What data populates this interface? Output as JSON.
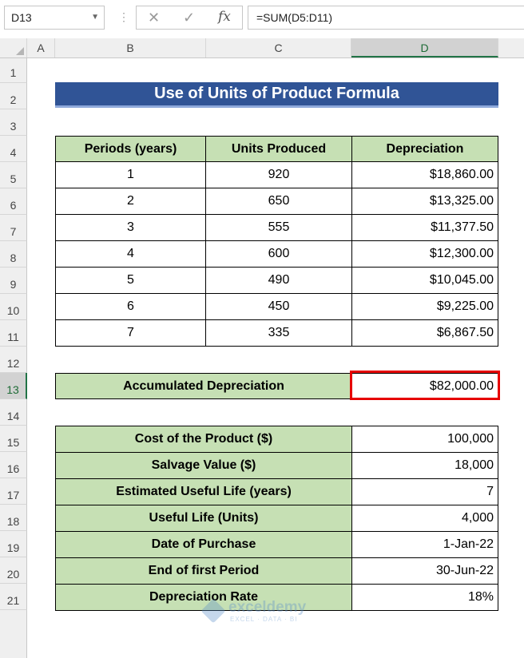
{
  "formula_bar": {
    "name_box": "D13",
    "formula": "=SUM(D5:D11)",
    "icons": [
      "more-icon",
      "cancel-icon",
      "enter-icon",
      "function-icon"
    ]
  },
  "columns": [
    "A",
    "B",
    "C",
    "D"
  ],
  "selected_column": "D",
  "rows": [
    "1",
    "2",
    "3",
    "4",
    "5",
    "6",
    "7",
    "8",
    "9",
    "10",
    "11",
    "12",
    "13",
    "14",
    "15",
    "16",
    "17",
    "18",
    "19",
    "20",
    "21"
  ],
  "selected_row": "13",
  "title": "Use of Units of Product Formula",
  "table1": {
    "headers": [
      "Periods (years)",
      "Units Produced",
      "Depreciation"
    ],
    "rows": [
      [
        "1",
        "920",
        "$18,860.00"
      ],
      [
        "2",
        "650",
        "$13,325.00"
      ],
      [
        "3",
        "555",
        "$11,377.50"
      ],
      [
        "4",
        "600",
        "$12,300.00"
      ],
      [
        "5",
        "490",
        "$10,045.00"
      ],
      [
        "6",
        "450",
        "$9,225.00"
      ],
      [
        "7",
        "335",
        "$6,867.50"
      ]
    ]
  },
  "accumulated": {
    "label": "Accumulated Depreciation",
    "value": "$82,000.00"
  },
  "table2": [
    {
      "label": "Cost of the Product ($)",
      "value": "100,000"
    },
    {
      "label": "Salvage Value ($)",
      "value": "18,000"
    },
    {
      "label": "Estimated Useful Life (years)",
      "value": "7"
    },
    {
      "label": "Useful Life (Units)",
      "value": "4,000"
    },
    {
      "label": "Date of Purchase",
      "value": "1-Jan-22"
    },
    {
      "label": "End of first Period",
      "value": "30-Jun-22"
    },
    {
      "label": "Depreciation Rate",
      "value": "18%"
    }
  ],
  "watermark": {
    "name": "exceldemy",
    "tagline": "EXCEL · DATA · BI"
  },
  "colors": {
    "header_green": "#c6e0b4",
    "title_blue": "#305496",
    "selection_red": "#e60000",
    "excel_green": "#217346"
  }
}
